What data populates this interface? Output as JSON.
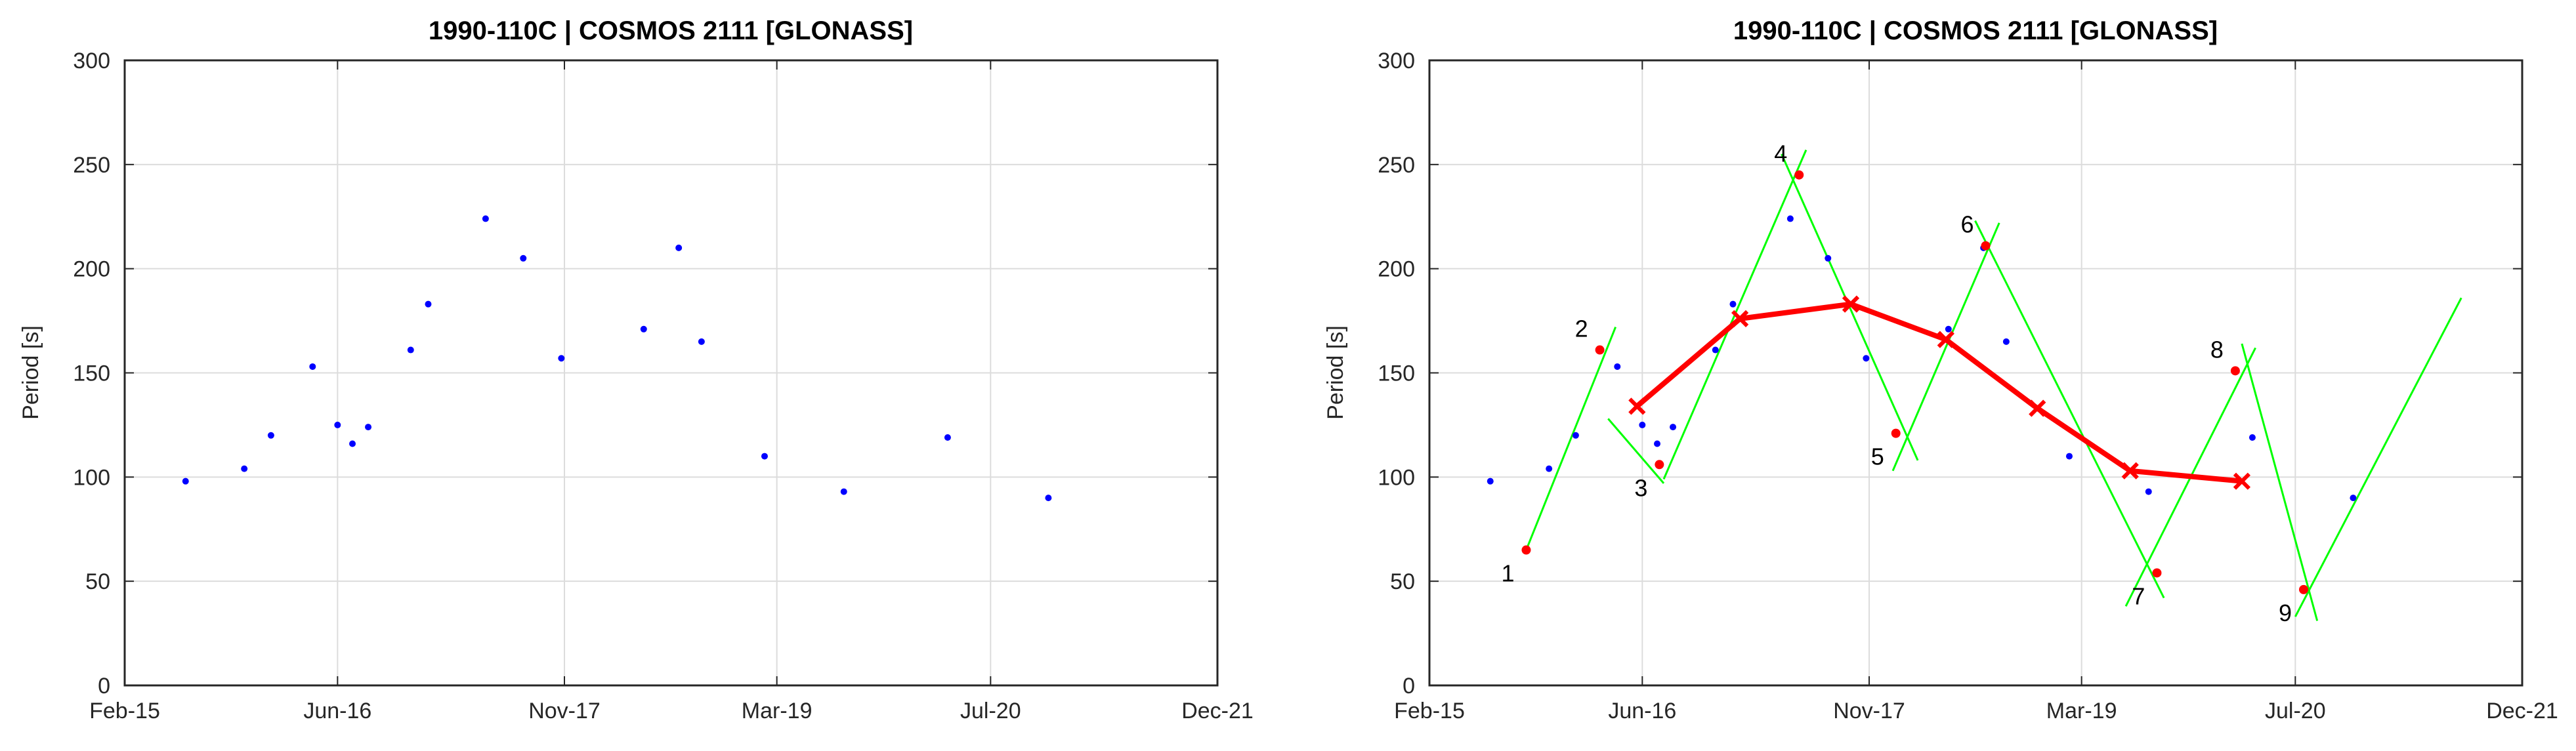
{
  "chart_data": [
    {
      "type": "scatter",
      "title": "1990-110C | COSMOS 2111 [GLONASS]",
      "xlabel": "",
      "ylabel": "Period [s]",
      "xlim": [
        "2015-02-01",
        "2021-12-01"
      ],
      "ylim": [
        0,
        300
      ],
      "x_ticks": [
        "Feb-15",
        "Jun-16",
        "Nov-17",
        "Mar-19",
        "Jul-20",
        "Dec-21"
      ],
      "y_ticks": [
        0,
        50,
        100,
        150,
        200,
        250,
        300
      ],
      "grid": true,
      "series": [
        {
          "color": "#0000ff",
          "points": [
            {
              "x": "2015-06-20",
              "y": 98
            },
            {
              "x": "2015-11-01",
              "y": 104
            },
            {
              "x": "2016-01-01",
              "y": 120
            },
            {
              "x": "2016-04-05",
              "y": 153
            },
            {
              "x": "2016-06-01",
              "y": 125
            },
            {
              "x": "2016-07-05",
              "y": 116
            },
            {
              "x": "2016-08-10",
              "y": 124
            },
            {
              "x": "2016-11-15",
              "y": 161
            },
            {
              "x": "2016-12-25",
              "y": 183
            },
            {
              "x": "2017-05-05",
              "y": 224
            },
            {
              "x": "2017-07-30",
              "y": 205
            },
            {
              "x": "2017-10-25",
              "y": 157
            },
            {
              "x": "2018-05-01",
              "y": 171
            },
            {
              "x": "2018-07-20",
              "y": 210
            },
            {
              "x": "2018-09-10",
              "y": 165
            },
            {
              "x": "2019-02-01",
              "y": 110
            },
            {
              "x": "2019-08-01",
              "y": 93
            },
            {
              "x": "2020-03-25",
              "y": 119
            },
            {
              "x": "2020-11-10",
              "y": 90
            }
          ]
        }
      ]
    },
    {
      "type": "line",
      "title": "1990-110C | COSMOS 2111 [GLONASS]",
      "xlabel": "",
      "ylabel": "Period [s]",
      "xlim": [
        "2015-02-01",
        "2021-12-01"
      ],
      "ylim": [
        0,
        300
      ],
      "x_ticks": [
        "Feb-15",
        "Jun-16",
        "Nov-17",
        "Mar-19",
        "Jul-20",
        "Dec-21"
      ],
      "y_ticks": [
        0,
        50,
        100,
        150,
        200,
        250,
        300
      ],
      "grid": true,
      "scatter_series": {
        "color": "#0000ff",
        "points": [
          {
            "x": "2015-06-20",
            "y": 98
          },
          {
            "x": "2015-11-01",
            "y": 104
          },
          {
            "x": "2016-01-01",
            "y": 120
          },
          {
            "x": "2016-04-05",
            "y": 153
          },
          {
            "x": "2016-06-01",
            "y": 125
          },
          {
            "x": "2016-07-05",
            "y": 116
          },
          {
            "x": "2016-08-10",
            "y": 124
          },
          {
            "x": "2016-11-15",
            "y": 161
          },
          {
            "x": "2016-12-25",
            "y": 183
          },
          {
            "x": "2017-05-05",
            "y": 224
          },
          {
            "x": "2017-07-30",
            "y": 205
          },
          {
            "x": "2017-10-25",
            "y": 157
          },
          {
            "x": "2018-05-01",
            "y": 171
          },
          {
            "x": "2018-07-20",
            "y": 210
          },
          {
            "x": "2018-09-10",
            "y": 165
          },
          {
            "x": "2019-02-01",
            "y": 110
          },
          {
            "x": "2019-08-01",
            "y": 93
          },
          {
            "x": "2020-03-25",
            "y": 119
          },
          {
            "x": "2020-11-10",
            "y": 90
          }
        ]
      },
      "fit_lines": {
        "color": "#00ff00",
        "segments": [
          [
            {
              "x": "2015-09-10",
              "y": 65
            },
            {
              "x": "2016-04-01",
              "y": 172
            }
          ],
          [
            {
              "x": "2016-03-15",
              "y": 128
            },
            {
              "x": "2016-07-20",
              "y": 97
            }
          ],
          [
            {
              "x": "2016-07-20",
              "y": 99
            },
            {
              "x": "2017-06-10",
              "y": 257
            }
          ],
          [
            {
              "x": "2017-04-15",
              "y": 255
            },
            {
              "x": "2018-02-20",
              "y": 108
            }
          ],
          [
            {
              "x": "2017-12-25",
              "y": 103
            },
            {
              "x": "2018-08-25",
              "y": 222
            }
          ],
          [
            {
              "x": "2018-07-01",
              "y": 223
            },
            {
              "x": "2019-09-05",
              "y": 42
            }
          ],
          [
            {
              "x": "2019-06-10",
              "y": 38
            },
            {
              "x": "2020-04-01",
              "y": 162
            }
          ],
          [
            {
              "x": "2020-03-01",
              "y": 164
            },
            {
              "x": "2020-08-20",
              "y": 31
            }
          ],
          [
            {
              "x": "2020-07-01",
              "y": 33
            },
            {
              "x": "2021-07-15",
              "y": 186
            }
          ]
        ]
      },
      "extrema_points": {
        "color": "#ff0000",
        "points": [
          {
            "label": "1",
            "x": "2015-09-10",
            "y": 65
          },
          {
            "label": "2",
            "x": "2016-02-25",
            "y": 161
          },
          {
            "label": "3",
            "x": "2016-07-10",
            "y": 106
          },
          {
            "label": "4",
            "x": "2017-05-25",
            "y": 245
          },
          {
            "label": "5",
            "x": "2018-01-01",
            "y": 121
          },
          {
            "label": "6",
            "x": "2018-07-25",
            "y": 211
          },
          {
            "label": "7",
            "x": "2019-08-20",
            "y": 54
          },
          {
            "label": "8",
            "x": "2020-02-15",
            "y": 151
          },
          {
            "label": "9",
            "x": "2020-07-20",
            "y": 46
          }
        ]
      },
      "mean_line": {
        "color": "#ff0000",
        "points": [
          {
            "x": "2016-05-20",
            "y": 134
          },
          {
            "x": "2017-01-10",
            "y": 176
          },
          {
            "x": "2017-09-20",
            "y": 183
          },
          {
            "x": "2018-04-25",
            "y": 166
          },
          {
            "x": "2018-11-20",
            "y": 133
          },
          {
            "x": "2019-06-20",
            "y": 103
          },
          {
            "x": "2020-03-01",
            "y": 98
          }
        ]
      }
    }
  ]
}
